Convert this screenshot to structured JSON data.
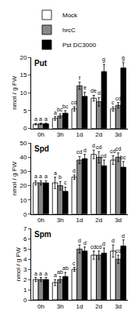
{
  "chart_data": [
    {
      "type": "bar",
      "title": "Put",
      "y_label": "nmol / g FW",
      "categories": [
        "0h",
        "3h",
        "1d",
        "2d",
        "3d"
      ],
      "ylim": [
        0,
        20
      ],
      "yticks": [
        0,
        5,
        10,
        15,
        20
      ],
      "grid": false,
      "legend": "top",
      "series": [
        {
          "name": "Mock",
          "color": "#ffffff",
          "values": [
            1.2,
            2.8,
            5.5,
            8.5,
            5.5
          ],
          "errors": [
            0.2,
            0.5,
            0.6,
            0.8,
            0.6
          ],
          "letters": [
            "a",
            "a",
            "cd",
            "de",
            "c"
          ]
        },
        {
          "name": "hrcC",
          "color": "#888888",
          "values": [
            1.3,
            3.5,
            12.0,
            7.5,
            6.5
          ],
          "errors": [
            0.2,
            0.6,
            1.0,
            1.2,
            0.8
          ],
          "letters": [
            "a",
            "bc",
            "f",
            "d",
            "cd"
          ]
        },
        {
          "name": "Pst DC3000",
          "color": "#000000",
          "values": [
            1.3,
            4.3,
            9.0,
            16.0,
            17.0
          ],
          "errors": [
            0.2,
            0.7,
            1.2,
            2.0,
            1.5
          ],
          "letters": [
            "a",
            "bc",
            "e",
            "g",
            "g"
          ]
        }
      ]
    },
    {
      "type": "bar",
      "title": "Spd",
      "y_label": "nmol / g FW",
      "categories": [
        "0h",
        "3h",
        "1d",
        "2d",
        "3d"
      ],
      "ylim": [
        0,
        50
      ],
      "yticks": [
        0,
        10,
        20,
        30,
        40,
        50
      ],
      "grid": false,
      "series": [
        {
          "name": "Mock",
          "color": "#ffffff",
          "values": [
            22,
            22,
            26,
            42,
            38
          ],
          "errors": [
            1.5,
            4,
            1.5,
            3,
            3
          ],
          "letters": [
            "a",
            "a",
            "d",
            "d",
            "cd"
          ]
        },
        {
          "name": "hrcC",
          "color": "#888888",
          "values": [
            22,
            20,
            38,
            40,
            40
          ],
          "errors": [
            1.5,
            3,
            2.5,
            4,
            3
          ],
          "letters": [
            "a",
            "b",
            "cd",
            "cd",
            "cd"
          ]
        },
        {
          "name": "Pst DC3000",
          "color": "#000000",
          "values": [
            22,
            16,
            39,
            34,
            33
          ],
          "errors": [
            1.5,
            3,
            3,
            4,
            4
          ],
          "letters": [
            "a",
            "c",
            "d",
            "cd",
            "bc"
          ]
        }
      ]
    },
    {
      "type": "bar",
      "title": "Spm",
      "y_label": "nmol / g FW",
      "categories": [
        "0h",
        "3h",
        "1d",
        "2d",
        "3d"
      ],
      "ylim": [
        0,
        7
      ],
      "yticks": [
        0,
        1,
        2,
        3,
        4,
        5,
        6,
        7
      ],
      "grid": false,
      "series": [
        {
          "name": "Mock",
          "color": "#ffffff",
          "values": [
            2.0,
            1.7,
            3.0,
            4.4,
            4.8
          ],
          "errors": [
            0.2,
            0.3,
            0.2,
            0.4,
            0.6
          ],
          "letters": [
            "a",
            "a",
            "c",
            "cd",
            "d"
          ]
        },
        {
          "name": "hrcC",
          "color": "#888888",
          "values": [
            2.0,
            2.0,
            5.0,
            4.4,
            4.0
          ],
          "errors": [
            0.2,
            0.3,
            0.4,
            0.4,
            0.4
          ],
          "letters": [
            "a",
            "ab",
            "d",
            "cd",
            "cd"
          ]
        },
        {
          "name": "Pst DC3000",
          "color": "#000000",
          "values": [
            2.0,
            2.3,
            4.8,
            4.6,
            5.3
          ],
          "errors": [
            0.2,
            0.4,
            0.4,
            0.5,
            0.6
          ],
          "letters": [
            "a",
            "ab",
            "d",
            "d",
            "d"
          ]
        }
      ]
    }
  ]
}
